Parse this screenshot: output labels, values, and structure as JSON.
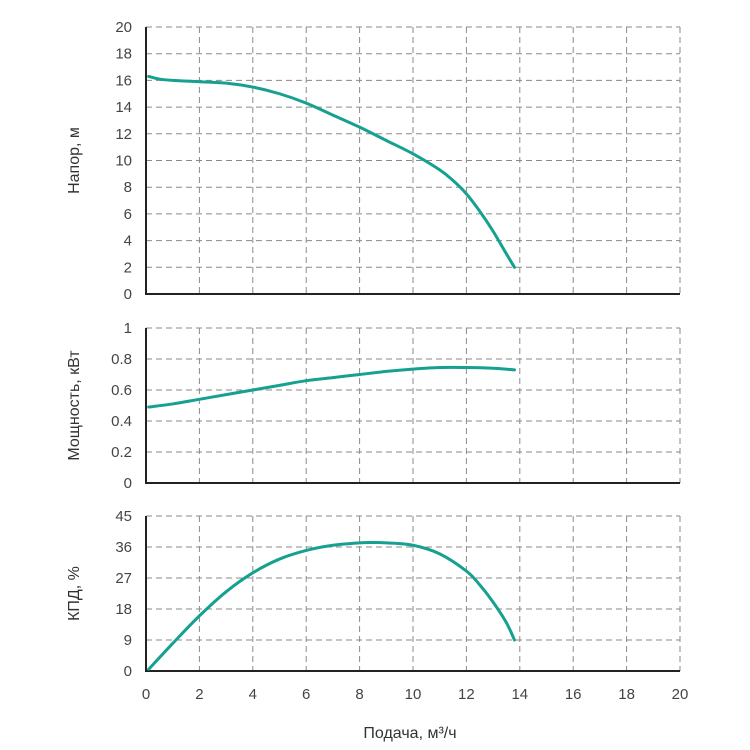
{
  "colors": {
    "curve": "#16a08f"
  },
  "chart_data": {
    "type": "line",
    "xlabel": "Подача, м³/ч",
    "xlim": [
      0,
      20
    ],
    "x_ticks": [
      "0",
      "2",
      "4",
      "6",
      "8",
      "10",
      "12",
      "14",
      "16",
      "18",
      "20"
    ],
    "panels": [
      {
        "ylabel": "Напор, м",
        "ylim": [
          0,
          20
        ],
        "y_ticks": [
          "0",
          "2",
          "4",
          "6",
          "8",
          "10",
          "12",
          "14",
          "16",
          "18",
          "20"
        ],
        "series": [
          {
            "x": [
              0.1,
              0.5,
              1,
              2,
              3,
              4,
              5,
              6,
              7,
              8,
              9,
              10,
              11,
              11.5,
              12,
              12.5,
              13,
              13.5,
              13.8
            ],
            "y": [
              16.3,
              16.1,
              16.0,
              15.9,
              15.8,
              15.5,
              15.0,
              14.3,
              13.4,
              12.5,
              11.5,
              10.5,
              9.3,
              8.5,
              7.5,
              6.2,
              4.7,
              3.0,
              2.0
            ]
          }
        ]
      },
      {
        "ylabel": "Мощность, кВт",
        "ylim": [
          0,
          1
        ],
        "y_ticks": [
          "0",
          "0.2",
          "0.4",
          "0.6",
          "0.8",
          "1"
        ],
        "series": [
          {
            "x": [
              0.1,
              1,
              2,
              3,
              4,
              5,
              6,
              7,
              8,
              9,
              10,
              11,
              12,
              13,
              13.8
            ],
            "y": [
              0.49,
              0.51,
              0.54,
              0.57,
              0.6,
              0.63,
              0.66,
              0.68,
              0.7,
              0.72,
              0.735,
              0.745,
              0.745,
              0.74,
              0.73
            ]
          }
        ]
      },
      {
        "ylabel": "КПД, %",
        "ylim": [
          0,
          45
        ],
        "y_ticks": [
          "0",
          "9",
          "18",
          "27",
          "36",
          "45"
        ],
        "series": [
          {
            "x": [
              0.1,
              1,
              2,
              3,
              4,
              5,
              6,
              7,
              8,
              8.5,
              9,
              10,
              11,
              12,
              12.5,
              13,
              13.5,
              13.8
            ],
            "y": [
              0.5,
              8,
              16,
              23,
              28.5,
              32.5,
              35,
              36.5,
              37.2,
              37.3,
              37.2,
              36.5,
              34,
              29,
              25,
              20,
              14,
              9
            ]
          }
        ]
      }
    ]
  }
}
